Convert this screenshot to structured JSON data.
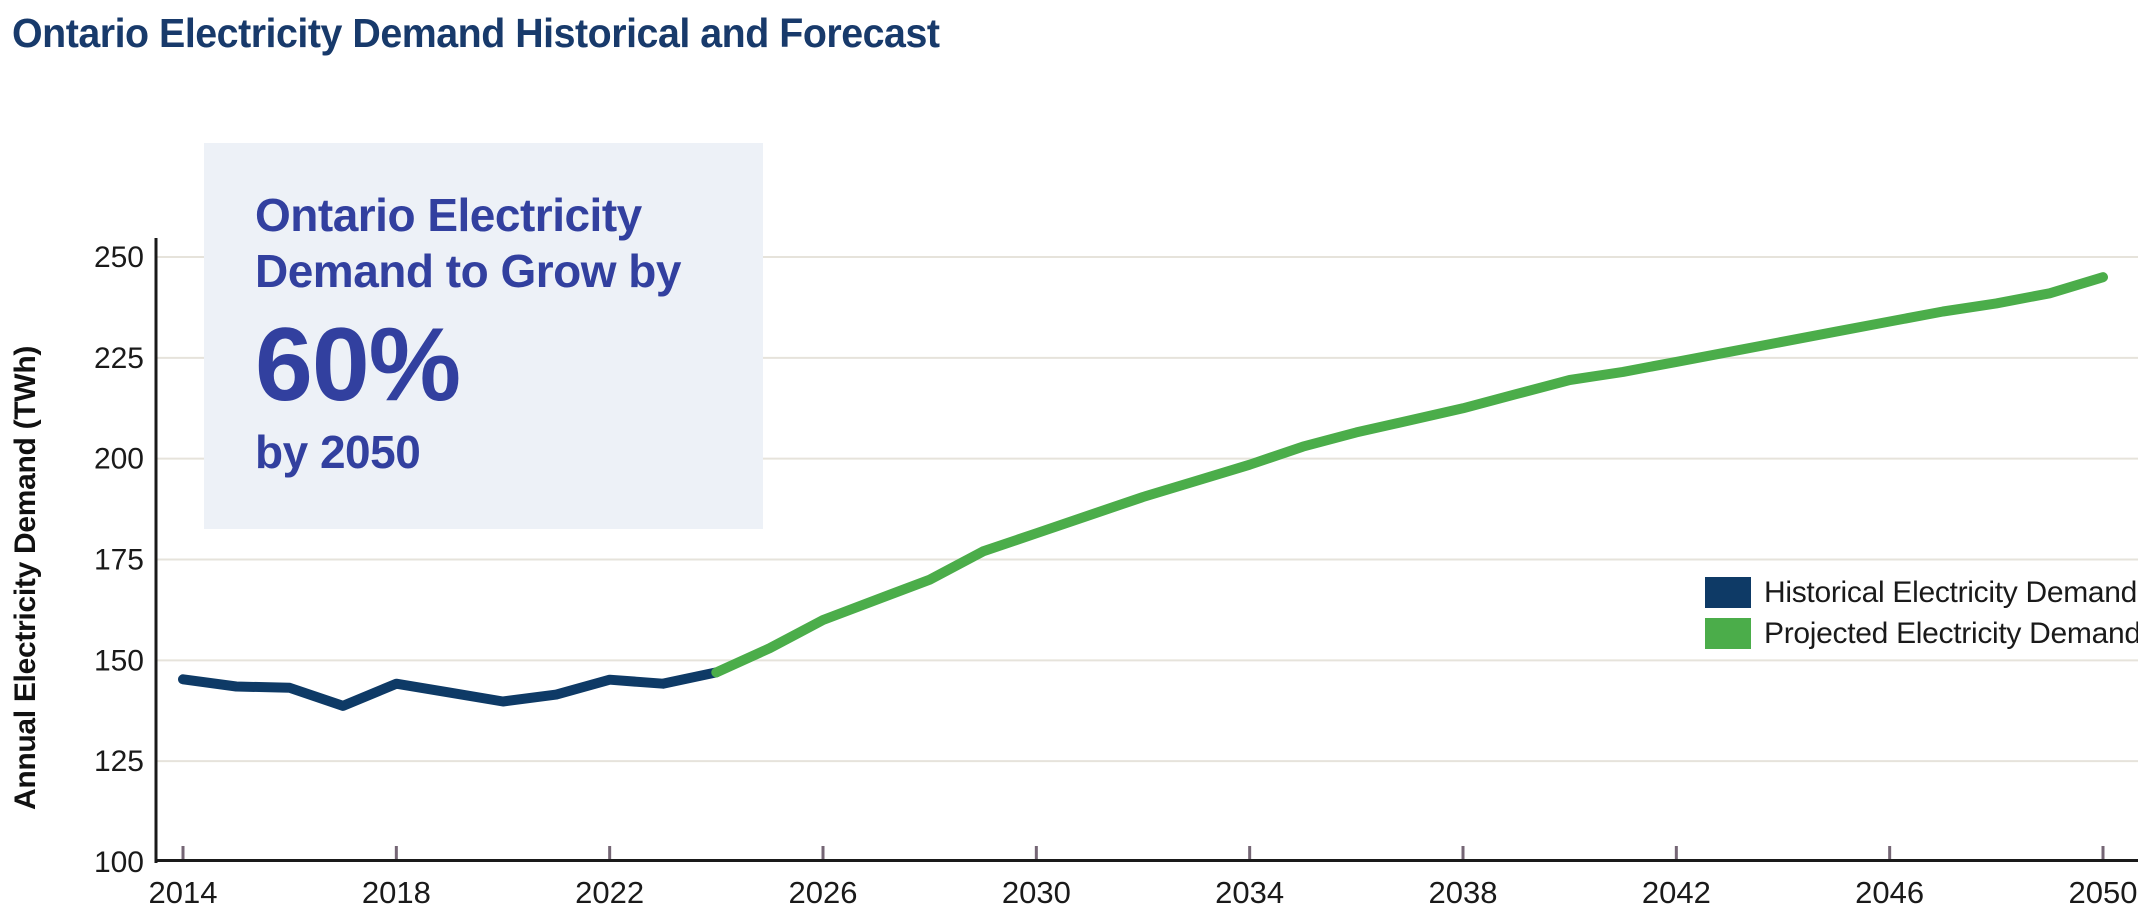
{
  "page": {
    "title": "Ontario Electricity Demand Historical and Forecast"
  },
  "y_axis_title": "Annual Electricity Demand  (TWh)",
  "callout": {
    "heading_line1": "Ontario Electricity",
    "heading_line2": "Demand to Grow by",
    "big_value": "60%",
    "subline": "by 2050"
  },
  "legend": {
    "items": [
      {
        "label": "Historical Electricity Demand",
        "color": "#0e3a66"
      },
      {
        "label": "Projected Electricity Demand",
        "color": "#4bad4a"
      }
    ]
  },
  "colors": {
    "title_text": "#183a6b",
    "callout_text": "#32409f",
    "callout_bg": "#edf1f7",
    "historical_line": "#0e3a66",
    "projected_line": "#4bad4a",
    "gridline": "#e6e3db",
    "axis_line": "#1a1a1a",
    "tick_mark": "#756675",
    "tick_label": "#1a1a1a"
  },
  "chart_data": {
    "type": "line",
    "title": "Ontario Electricity Demand Historical and Forecast",
    "xlabel": "",
    "ylabel": "Annual Electricity Demand  (TWh)",
    "xlim": [
      2014,
      2050
    ],
    "ylim": [
      100,
      250
    ],
    "x_ticks": [
      2014,
      2018,
      2022,
      2026,
      2030,
      2034,
      2038,
      2042,
      2046,
      2050
    ],
    "y_ticks": [
      100,
      125,
      150,
      175,
      200,
      225,
      250
    ],
    "grid": "horizontal",
    "legend_position": "right-middle",
    "series": [
      {
        "name": "Historical Electricity Demand",
        "color": "#0e3a66",
        "x": [
          2014,
          2015,
          2016,
          2017,
          2018,
          2019,
          2020,
          2021,
          2022,
          2023,
          2024
        ],
        "values": [
          145.3,
          143.5,
          143.2,
          138.7,
          144.2,
          142.0,
          139.8,
          141.5,
          145.2,
          144.2,
          147.0
        ]
      },
      {
        "name": "Projected Electricity Demand",
        "color": "#4bad4a",
        "x": [
          2024,
          2025,
          2026,
          2027,
          2028,
          2029,
          2030,
          2031,
          2032,
          2033,
          2034,
          2035,
          2036,
          2037,
          2038,
          2039,
          2040,
          2041,
          2042,
          2043,
          2044,
          2045,
          2046,
          2047,
          2048,
          2049,
          2050
        ],
        "values": [
          147.0,
          153.0,
          160.0,
          165.0,
          170.0,
          177.0,
          181.5,
          186.0,
          190.5,
          194.5,
          198.5,
          203.0,
          206.5,
          209.5,
          212.5,
          216.0,
          219.5,
          221.5,
          224.0,
          226.5,
          229.0,
          231.5,
          234.0,
          236.5,
          238.5,
          241.0,
          245.0
        ]
      }
    ]
  }
}
